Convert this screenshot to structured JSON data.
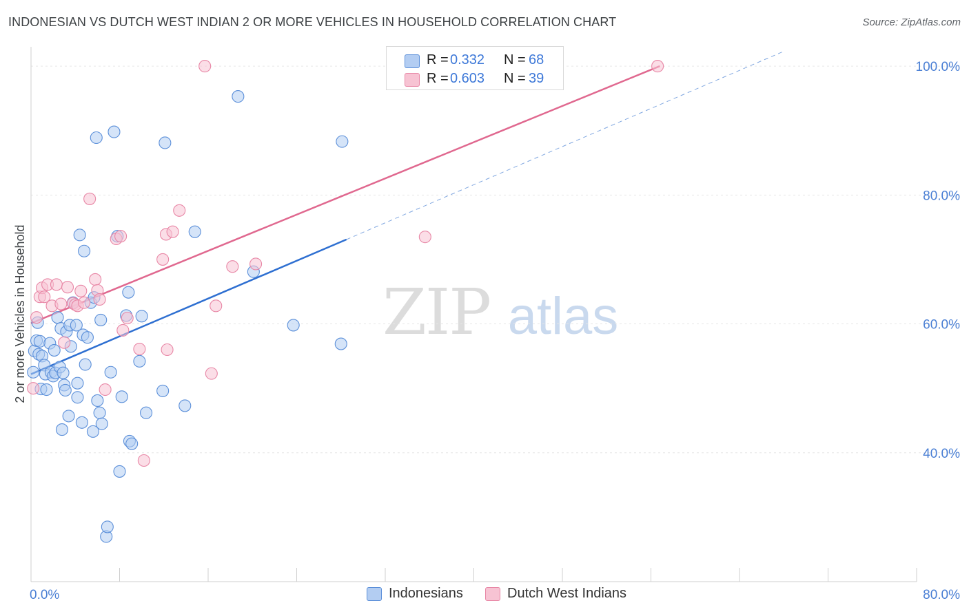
{
  "title": "INDONESIAN VS DUTCH WEST INDIAN 2 OR MORE VEHICLES IN HOUSEHOLD CORRELATION CHART",
  "source": "Source: ZipAtlas.com",
  "watermark": {
    "zip": "ZIP",
    "atlas": "atlas"
  },
  "legend": {
    "r_label": "R =",
    "n_label": "N =",
    "rows": [
      {
        "r": "0.332",
        "n": "68"
      },
      {
        "r": "0.603",
        "n": "39"
      }
    ]
  },
  "series_labels": {
    "indonesians": "Indonesians",
    "dutch": "Dutch West Indians"
  },
  "colors": {
    "blue_fill": "#b3cdf2",
    "blue_stroke": "#5b8fd9",
    "blue_line": "#2e6fd1",
    "pink_fill": "#f7c3d3",
    "pink_stroke": "#e887a6",
    "pink_line": "#e0688f",
    "tick": "#4a7fd4",
    "grid": "#e6e6e6"
  },
  "chart_data": {
    "type": "scatter",
    "title": "INDONESIAN VS DUTCH WEST INDIAN 2 OR MORE VEHICLES IN HOUSEHOLD CORRELATION CHART",
    "xlabel": "",
    "ylabel": "2 or more Vehicles in Household",
    "xlim": [
      0,
      80
    ],
    "ylim": [
      20,
      103
    ],
    "x_tick_labels": [
      "0.0%",
      "80.0%"
    ],
    "y_ticks": [
      40,
      60,
      80,
      100
    ],
    "y_tick_labels": [
      "40.0%",
      "60.0%",
      "80.0%",
      "100.0%"
    ],
    "series": [
      {
        "name": "Indonesians",
        "color": "blue",
        "R": 0.332,
        "N": 68,
        "points": [
          [
            0.3,
            55.8
          ],
          [
            0.5,
            57.4
          ],
          [
            0.6,
            60.2
          ],
          [
            0.7,
            55.3
          ],
          [
            0.8,
            57.3
          ],
          [
            0.9,
            49.9
          ],
          [
            1.0,
            55.0
          ],
          [
            1.2,
            53.6
          ],
          [
            1.3,
            52.2
          ],
          [
            1.4,
            49.8
          ],
          [
            1.7,
            57.0
          ],
          [
            1.8,
            52.5
          ],
          [
            2.0,
            51.9
          ],
          [
            2.1,
            55.9
          ],
          [
            2.2,
            52.4
          ],
          [
            2.4,
            61.0
          ],
          [
            2.6,
            53.3
          ],
          [
            2.7,
            59.3
          ],
          [
            2.8,
            43.6
          ],
          [
            2.9,
            52.4
          ],
          [
            3.0,
            50.5
          ],
          [
            3.1,
            49.7
          ],
          [
            3.2,
            58.8
          ],
          [
            3.4,
            45.7
          ],
          [
            3.5,
            59.8
          ],
          [
            3.6,
            56.5
          ],
          [
            3.8,
            63.3
          ],
          [
            4.1,
            59.8
          ],
          [
            4.2,
            48.6
          ],
          [
            4.2,
            50.8
          ],
          [
            4.4,
            73.8
          ],
          [
            4.6,
            44.7
          ],
          [
            4.7,
            58.3
          ],
          [
            4.8,
            71.3
          ],
          [
            4.9,
            53.7
          ],
          [
            5.1,
            57.9
          ],
          [
            5.4,
            63.3
          ],
          [
            5.6,
            43.3
          ],
          [
            5.7,
            64.1
          ],
          [
            5.9,
            88.9
          ],
          [
            6.0,
            48.1
          ],
          [
            6.2,
            46.2
          ],
          [
            6.3,
            60.6
          ],
          [
            6.4,
            44.5
          ],
          [
            6.8,
            27.0
          ],
          [
            6.9,
            28.5
          ],
          [
            7.2,
            52.5
          ],
          [
            7.5,
            89.8
          ],
          [
            7.8,
            73.6
          ],
          [
            8.0,
            37.1
          ],
          [
            8.2,
            48.7
          ],
          [
            8.6,
            61.3
          ],
          [
            8.8,
            64.9
          ],
          [
            8.9,
            41.8
          ],
          [
            9.1,
            41.4
          ],
          [
            9.8,
            54.2
          ],
          [
            10.0,
            61.2
          ],
          [
            10.4,
            46.2
          ],
          [
            11.9,
            49.6
          ],
          [
            12.1,
            88.1
          ],
          [
            13.9,
            47.3
          ],
          [
            14.8,
            74.3
          ],
          [
            18.7,
            95.3
          ],
          [
            20.1,
            68.1
          ],
          [
            23.7,
            59.8
          ],
          [
            28.1,
            88.3
          ],
          [
            28.0,
            56.9
          ],
          [
            0.2,
            52.5
          ]
        ]
      },
      {
        "name": "Dutch West Indians",
        "color": "pink",
        "R": 0.603,
        "N": 39,
        "points": [
          [
            0.2,
            50.0
          ],
          [
            0.5,
            61.0
          ],
          [
            0.8,
            64.2
          ],
          [
            1.0,
            65.6
          ],
          [
            1.2,
            64.2
          ],
          [
            1.5,
            66.1
          ],
          [
            1.9,
            62.8
          ],
          [
            2.3,
            66.1
          ],
          [
            2.7,
            63.1
          ],
          [
            3.0,
            57.1
          ],
          [
            3.3,
            65.7
          ],
          [
            3.8,
            63.2
          ],
          [
            4.0,
            63.0
          ],
          [
            4.2,
            62.8
          ],
          [
            4.5,
            65.1
          ],
          [
            4.8,
            63.3
          ],
          [
            5.3,
            79.4
          ],
          [
            5.8,
            66.9
          ],
          [
            6.0,
            65.2
          ],
          [
            6.2,
            63.8
          ],
          [
            6.7,
            49.8
          ],
          [
            7.7,
            73.2
          ],
          [
            8.1,
            73.6
          ],
          [
            8.3,
            59.0
          ],
          [
            8.7,
            60.9
          ],
          [
            9.8,
            56.1
          ],
          [
            10.2,
            38.8
          ],
          [
            11.9,
            70.0
          ],
          [
            12.2,
            73.9
          ],
          [
            12.3,
            56.0
          ],
          [
            12.8,
            74.3
          ],
          [
            13.4,
            77.6
          ],
          [
            15.7,
            100.0
          ],
          [
            16.3,
            52.3
          ],
          [
            16.7,
            62.8
          ],
          [
            18.2,
            68.9
          ],
          [
            20.3,
            69.3
          ],
          [
            35.6,
            73.5
          ],
          [
            56.6,
            100.0
          ]
        ]
      }
    ],
    "trend_lines": [
      {
        "series": "Indonesians",
        "x0": 0,
        "y0": 52.2,
        "x1": 28.5,
        "y1": 73.1,
        "dashed_to_x": 68,
        "dashed_to_y": 102.3
      },
      {
        "series": "Dutch West Indians",
        "x0": 0,
        "y0": 60.1,
        "x1": 56.8,
        "y1": 100.0
      }
    ]
  }
}
